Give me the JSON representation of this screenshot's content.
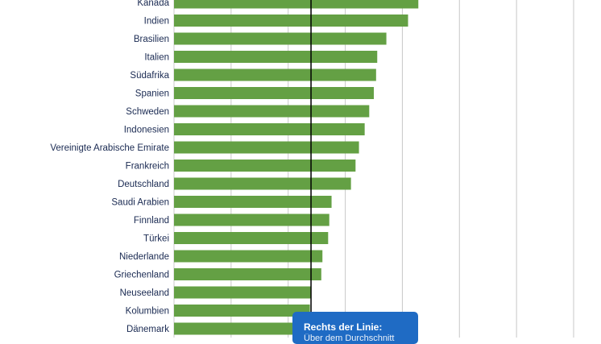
{
  "chart_data": {
    "type": "bar",
    "orientation": "horizontal",
    "categories": [
      "Kanada",
      "Indien",
      "Brasilien",
      "Italien",
      "Südafrika",
      "Spanien",
      "Schweden",
      "Indonesien",
      "Vereinigte Arabische Emirate",
      "Frankreich",
      "Deutschland",
      "Saudi Arabien",
      "Finnland",
      "Türkei",
      "Niederlande",
      "Griechenland",
      "Neuseeland",
      "Kolumbien",
      "Dänemark"
    ],
    "values": [
      107.0,
      102.5,
      93.0,
      89.0,
      88.5,
      87.5,
      85.5,
      83.5,
      81.0,
      79.5,
      77.5,
      69.0,
      68.0,
      67.5,
      65.0,
      64.5,
      60.0,
      59.5,
      57.5
    ],
    "xlim": [
      0,
      187
    ],
    "grid": true,
    "reference_value": 60,
    "bar_color": "#64a044",
    "grid_color": "#c8c8c8",
    "reference_color": "#000000",
    "label_color": "#1a2a52"
  },
  "annotation": {
    "line1": "Rechts der Linie:",
    "line2": "Über dem Durchschnitt",
    "background": "#1f6bc4"
  }
}
